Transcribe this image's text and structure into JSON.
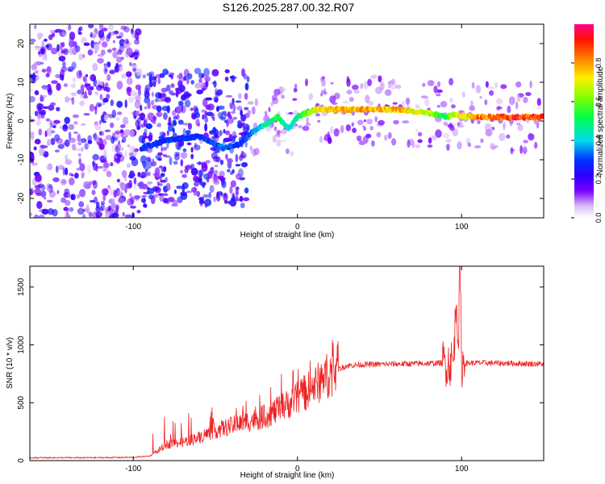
{
  "title": "S126.2025.287.00.32.R07",
  "chart_data": [
    {
      "type": "heatmap",
      "name": "spectrogram",
      "xlabel": "Height of straight line (km)",
      "ylabel": "Frequency (Hz)",
      "xlim": [
        -163,
        150
      ],
      "ylim": [
        -25,
        25
      ],
      "x_ticks": [
        -100,
        0,
        100
      ],
      "x_tick_labels": [
        "-100",
        "0",
        "100"
      ],
      "y_ticks": [
        -20,
        -10,
        0,
        10,
        20
      ],
      "y_tick_labels": [
        "-20",
        "-10",
        "0",
        "10",
        "20"
      ],
      "colorbar": {
        "label": "Normalized spectral amplitude",
        "range": [
          0,
          1
        ],
        "ticks": [
          0.0,
          0.2,
          0.4,
          0.6,
          0.8
        ],
        "tick_labels": [
          "0.0",
          "0.2",
          "0.4",
          "0.6",
          "0.8"
        ]
      },
      "ridge": {
        "x": [
          -95,
          -80,
          -60,
          -45,
          -35,
          -28,
          -20,
          -12,
          -5,
          0,
          5,
          12,
          20,
          40,
          60,
          80,
          90,
          95,
          110,
          130,
          150
        ],
        "frequency": [
          -7,
          -5,
          -4,
          -7,
          -6,
          -3,
          -1,
          1,
          -2,
          1,
          2,
          3,
          3,
          3,
          3,
          2,
          1,
          1.5,
          1,
          1,
          1
        ],
        "amplitude": [
          0.3,
          0.3,
          0.3,
          0.35,
          0.3,
          0.35,
          0.45,
          0.55,
          0.4,
          0.5,
          0.6,
          0.75,
          0.8,
          0.8,
          0.8,
          0.7,
          0.5,
          0.7,
          0.85,
          0.95,
          0.9
        ]
      },
      "noise_regions": [
        {
          "x_range": [
            -163,
            -95
          ],
          "frequency_range": [
            -25,
            25
          ],
          "amplitude_range": [
            0.05,
            0.25
          ]
        },
        {
          "x_range": [
            -95,
            -30
          ],
          "frequency_range": [
            -22,
            13
          ],
          "amplitude_range": [
            0.1,
            0.3
          ]
        },
        {
          "x_range": [
            -30,
            150
          ],
          "frequency_range": [
            -8,
            10
          ],
          "amplitude_range": [
            0.05,
            0.15
          ]
        }
      ]
    },
    {
      "type": "line",
      "name": "snr",
      "xlabel": "Height of straight line (km)",
      "ylabel": "SNR (10 * v/v)",
      "xlim": [
        -163,
        150
      ],
      "ylim": [
        0,
        1680
      ],
      "x_ticks": [
        -100,
        0,
        100
      ],
      "x_tick_labels": [
        "-100",
        "0",
        "100"
      ],
      "y_ticks": [
        0,
        500,
        1000,
        1500
      ],
      "y_tick_labels": [
        "0",
        "500",
        "1000",
        "1500"
      ],
      "color": "#ee2222",
      "series": [
        {
          "name": "SNR",
          "x": [
            -163,
            -130,
            -100,
            -90,
            -86,
            -80,
            -70,
            -60,
            -50,
            -40,
            -30,
            -20,
            -10,
            0,
            10,
            20,
            30,
            40,
            60,
            80,
            90,
            95,
            97,
            98,
            99,
            100,
            110,
            130,
            150
          ],
          "values": [
            25,
            25,
            28,
            40,
            70,
            140,
            160,
            200,
            260,
            300,
            340,
            380,
            450,
            540,
            640,
            760,
            820,
            830,
            835,
            840,
            845,
            850,
            1450,
            1000,
            1680,
            840,
            845,
            840,
            835
          ]
        }
      ]
    }
  ]
}
